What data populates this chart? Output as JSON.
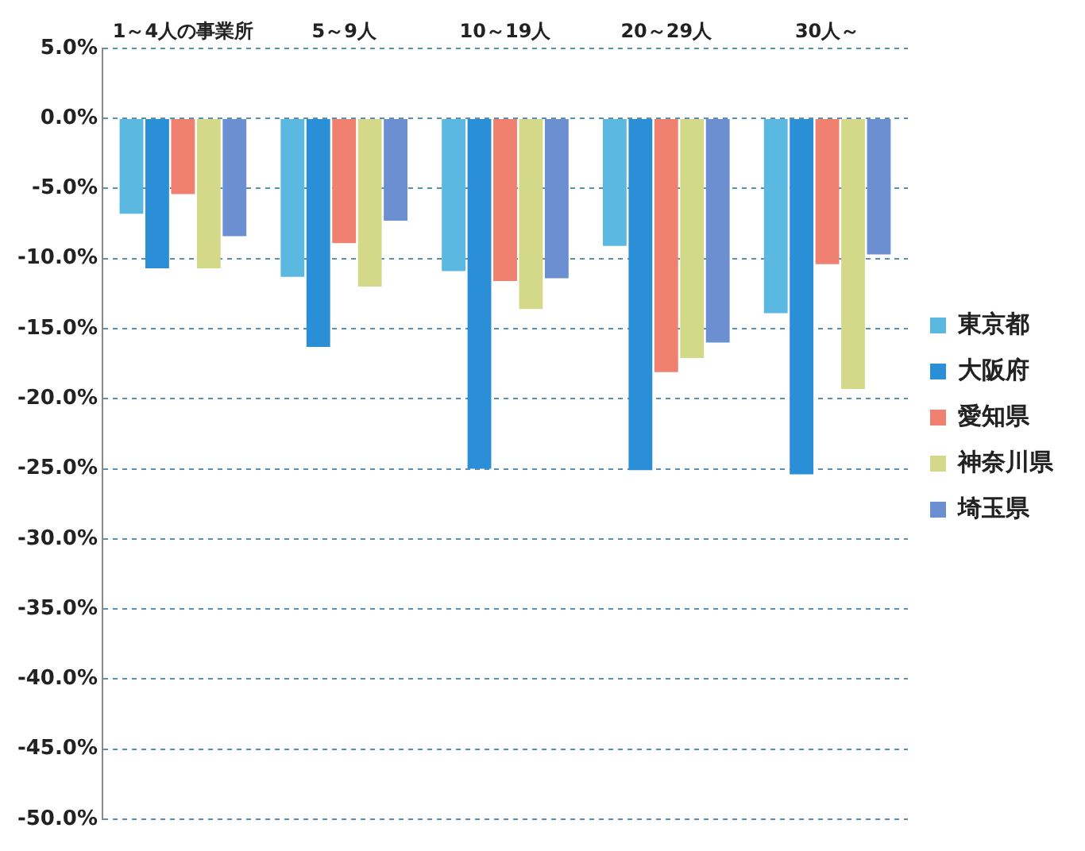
{
  "chart_data": {
    "type": "bar",
    "categories": [
      "1～4人の事業所",
      "5～9人",
      "10～19人",
      "20～29人",
      "30人～"
    ],
    "series": [
      {
        "name": "東京都",
        "color": "#5bb8e0",
        "values": [
          -6.8,
          -11.3,
          -10.9,
          -9.1,
          -13.9
        ]
      },
      {
        "name": "大阪府",
        "color": "#2a8fd6",
        "values": [
          -10.7,
          -16.3,
          -25.0,
          -25.1,
          -25.4
        ]
      },
      {
        "name": "愛知県",
        "color": "#f08070",
        "values": [
          -5.4,
          -8.9,
          -11.6,
          -18.1,
          -10.4
        ]
      },
      {
        "name": "神奈川県",
        "color": "#d4d98a",
        "values": [
          -10.7,
          -12.0,
          -13.6,
          -17.1,
          -19.3
        ]
      },
      {
        "name": "埼玉県",
        "color": "#6b8fd0",
        "values": [
          -8.4,
          -7.3,
          -11.4,
          -16.0,
          -9.7
        ]
      }
    ],
    "ylim": [
      -50,
      5
    ],
    "yticks": [
      {
        "value": 5,
        "label": "5.0%"
      },
      {
        "value": 0,
        "label": "0.0%"
      },
      {
        "value": -5,
        "label": "-5.0%"
      },
      {
        "value": -10,
        "label": "-10.0%"
      },
      {
        "value": -15,
        "label": "-15.0%"
      },
      {
        "value": -20,
        "label": "-20.0%"
      },
      {
        "value": -25,
        "label": "-25.0%"
      },
      {
        "value": -30,
        "label": "-30.0%"
      },
      {
        "value": -35,
        "label": "-35.0%"
      },
      {
        "value": -40,
        "label": "-40.0%"
      },
      {
        "value": -45,
        "label": "-45.0%"
      },
      {
        "value": -50,
        "label": "-50.0%"
      }
    ],
    "grid": "y",
    "legend": "right"
  }
}
